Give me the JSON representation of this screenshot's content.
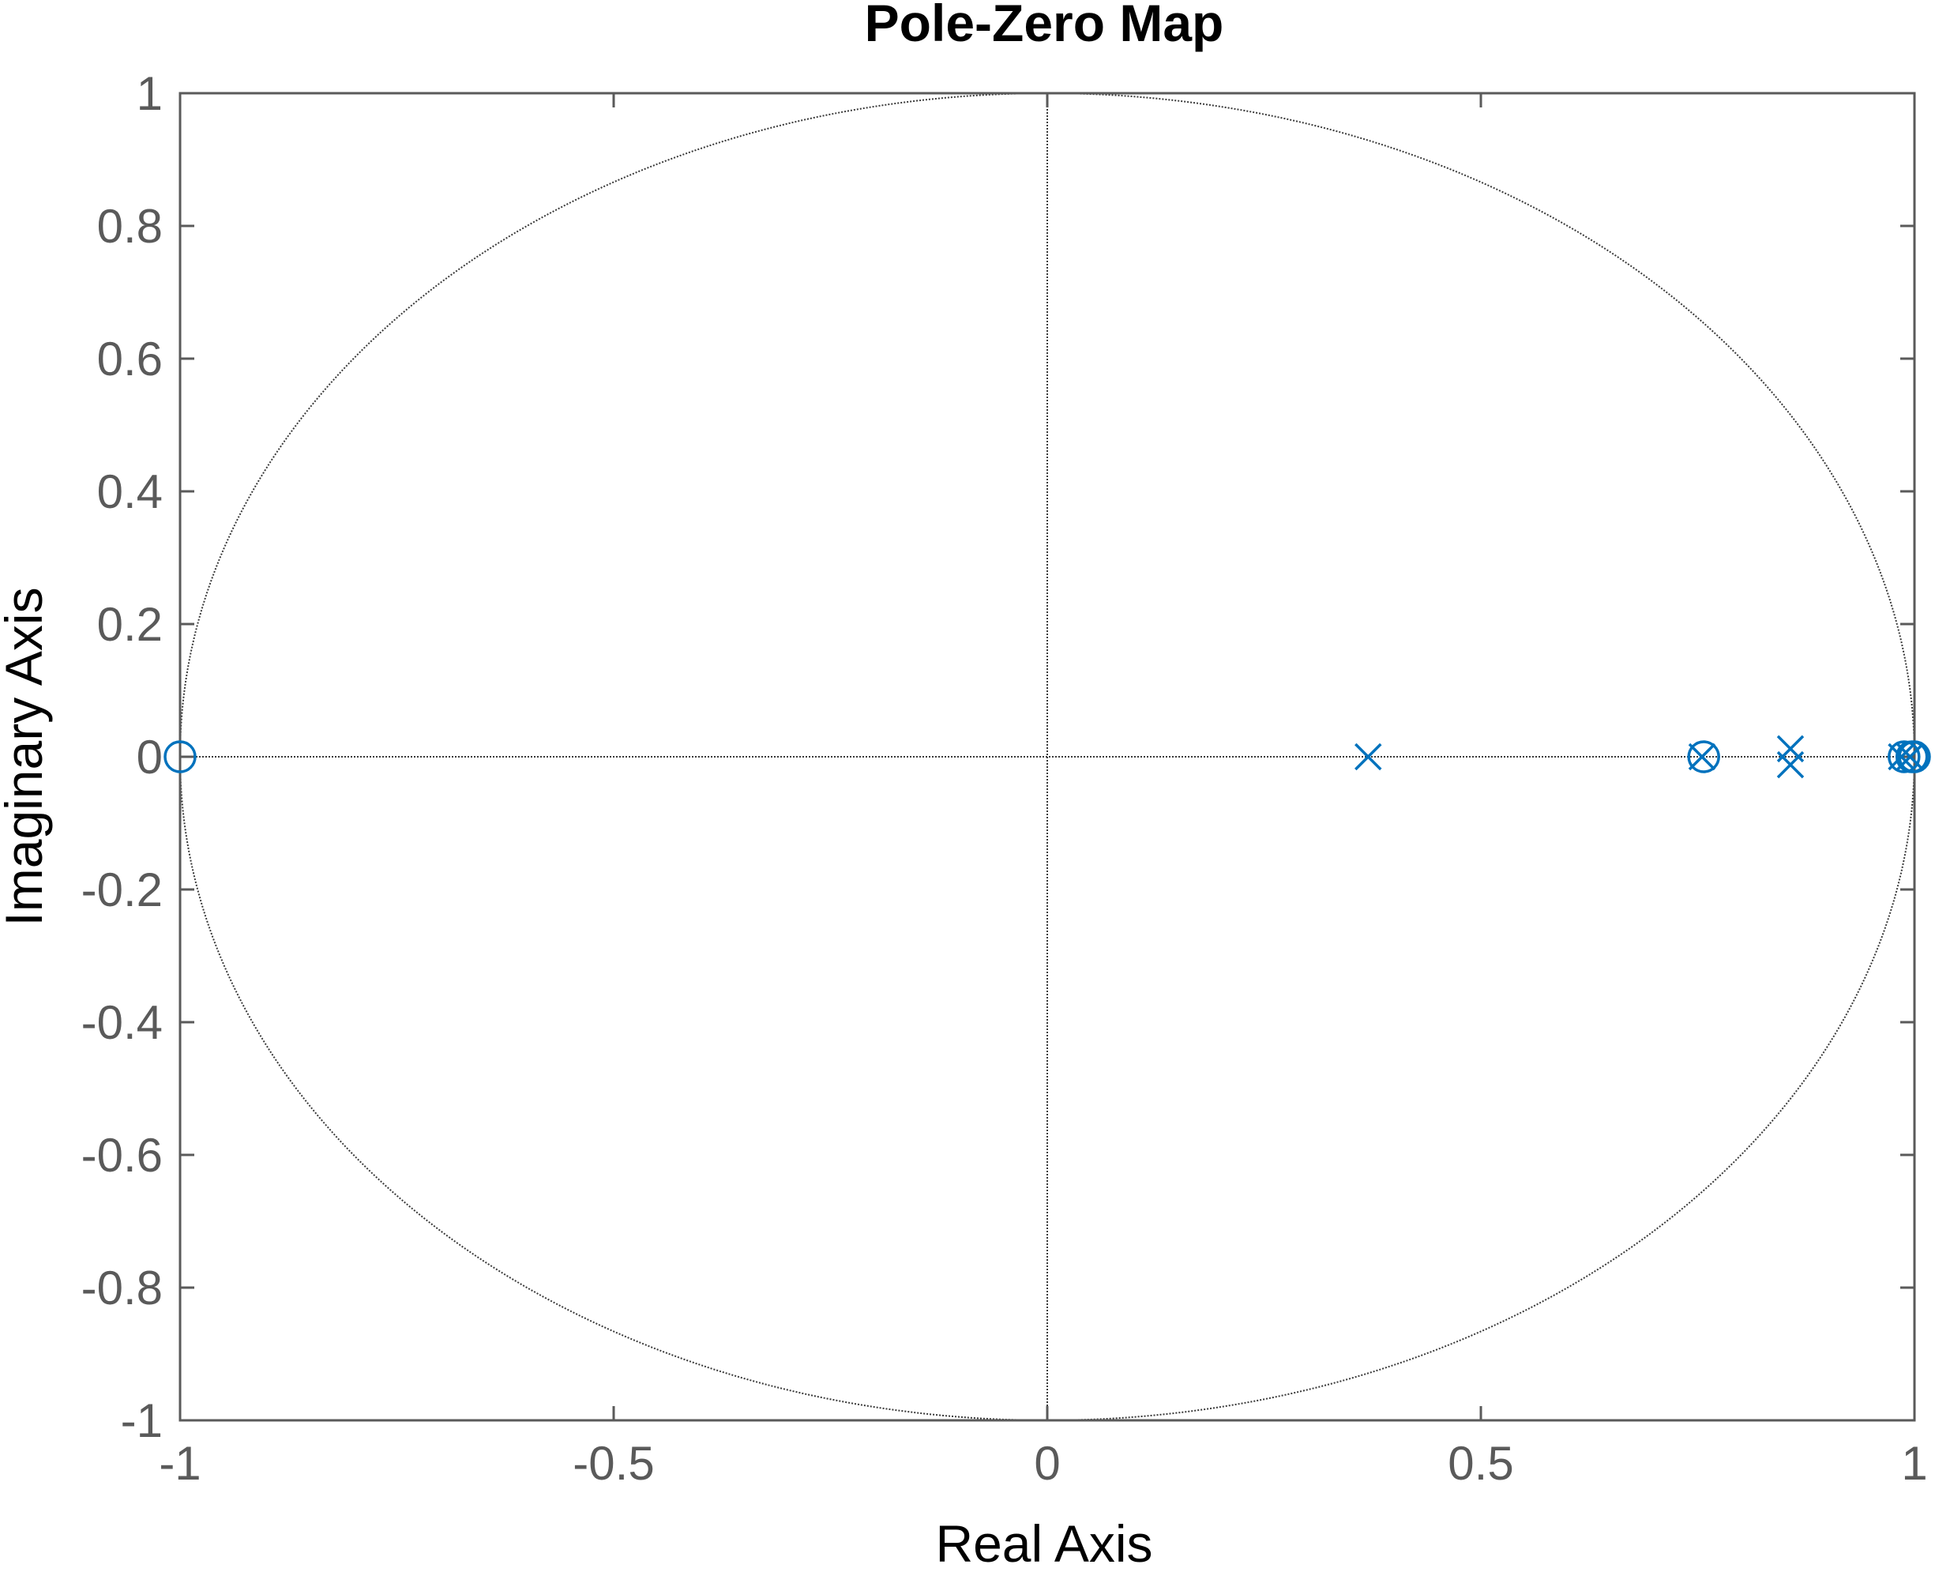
{
  "chart_data": {
    "type": "scatter",
    "title": "Pole-Zero Map",
    "xlabel": "Real Axis",
    "ylabel": "Imaginary Axis",
    "xlim": [
      -1,
      1
    ],
    "ylim": [
      -1,
      1
    ],
    "x_ticks": [
      -1,
      -0.5,
      0,
      0.5,
      1
    ],
    "x_tick_labels": [
      "-1",
      "-0.5",
      "0",
      "0.5",
      "1"
    ],
    "y_ticks": [
      1,
      0.8,
      0.6,
      0.4,
      0.2,
      0,
      -0.2,
      -0.4,
      -0.6,
      -0.8,
      -1
    ],
    "y_tick_labels": [
      "1",
      "0.8",
      "0.6",
      "0.4",
      "0.2",
      "0",
      "-0.2",
      "-0.4",
      "-0.6",
      "-0.8",
      "-1"
    ],
    "grid": false,
    "unit_circle": true,
    "marker_color": "#0072bd",
    "axes_color": "#5a5a5a",
    "series": [
      {
        "marker": "x",
        "points": [
          {
            "x": 0.37,
            "y": 0.0
          },
          {
            "x": 0.755,
            "y": 0.0
          },
          {
            "x": 0.857,
            "y": 0.012
          },
          {
            "x": 0.857,
            "y": -0.012
          },
          {
            "x": 0.985,
            "y": 0.0
          },
          {
            "x": 0.995,
            "y": 0.0
          }
        ]
      },
      {
        "marker": "o",
        "points": [
          {
            "x": -1.0,
            "y": 0.0
          },
          {
            "x": 0.757,
            "y": 0.0
          },
          {
            "x": 0.988,
            "y": 0.0
          },
          {
            "x": 0.997,
            "y": 0.0
          },
          {
            "x": 1.0,
            "y": 0.0
          }
        ]
      }
    ]
  }
}
